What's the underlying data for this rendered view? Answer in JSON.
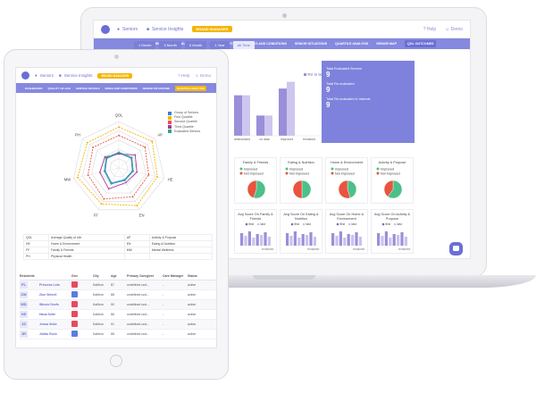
{
  "header": {
    "nav_seniors": "Seniors",
    "nav_insights": "Service Insights",
    "badge": "BRAND MANAGER",
    "help": "Help",
    "user": "Demo"
  },
  "nav_tabs": [
    "DASHBOARD",
    "QUALITY OF LIFE",
    "SERVICE DETAILS",
    "RISKS AND CONDITIONS",
    "SENIOR SITUATIONS",
    "QUARTILE ANALYSIS",
    "SENIOR MAP",
    "QOL OUTCOMES"
  ],
  "tablet_nav_tabs": [
    "DASHBOARD",
    "QUALITY OF LIFE",
    "SERVICE DETAILS",
    "RISKS AND CONDITIONS",
    "SENIOR SITUATIONS",
    "QUARTILE ANALYSIS"
  ],
  "time_ranges": [
    "1 Month",
    "3 Month",
    "6 Month",
    "1 Year",
    "All Time"
  ],
  "stats": {
    "total_label": "Total Evaluated Seniors",
    "total_value": "9",
    "reeval_label": "Total Re-evaluated",
    "reeval_value": "9",
    "internal_label": "Total Re-evaluated in Internal",
    "internal_value": "9"
  },
  "chart_data": [
    {
      "type": "bar",
      "categories": [
        "deteriorated",
        "no data",
        "improved",
        "remained"
      ],
      "series": [
        {
          "name": "first",
          "values": [
            6,
            3,
            7,
            0
          ]
        },
        {
          "name": "last",
          "values": [
            6,
            3,
            8,
            0
          ]
        }
      ],
      "ylim": [
        0,
        9
      ]
    },
    {
      "type": "pie",
      "title": "Family & Friends",
      "labels": [
        "Improved",
        "Not Improved"
      ],
      "values": [
        55,
        45
      ]
    },
    {
      "type": "pie",
      "title": "Eating & Nutrition",
      "labels": [
        "Improved",
        "Not Improved"
      ],
      "values": [
        50,
        50
      ]
    },
    {
      "type": "pie",
      "title": "Home & Environment",
      "labels": [
        "Improved",
        "Not Improved"
      ],
      "values": [
        45,
        55
      ]
    },
    {
      "type": "pie",
      "title": "Activity & Purpose",
      "labels": [
        "Improved",
        "Not Improved"
      ],
      "values": [
        60,
        40
      ]
    }
  ],
  "avg_cards": [
    {
      "title": "Avg Score On Family & Friends",
      "first": "first",
      "last": "last",
      "caption": "remained"
    },
    {
      "title": "Avg Score On Eating & Nutrition",
      "first": "first",
      "last": "last",
      "caption": "remained"
    },
    {
      "title": "Avg Score On Home & Environment",
      "first": "first",
      "last": "last",
      "caption": "remained"
    },
    {
      "title": "Avg Score On Activity & Purpose",
      "first": "first",
      "last": "last",
      "caption": "remained"
    }
  ],
  "radar": {
    "axes": [
      "QOL",
      "AP",
      "HE",
      "EN",
      "FF",
      "MW",
      "PH"
    ],
    "legend": [
      "Group of Seniors",
      "First Quartile",
      "Second Quartile",
      "Third Quartile",
      "Evaluated Seniors"
    ],
    "colors": [
      "#3b7dd8",
      "#f5b400",
      "#e8543f",
      "#b0359a",
      "#2ca88a"
    ]
  },
  "abbreviations": [
    [
      "QOL",
      "Average Quality of Life",
      "AP",
      "Activity & Purpose"
    ],
    [
      "HE",
      "Home & Environment",
      "EN",
      "Eating & Nutrition"
    ],
    [
      "FF",
      "Family & Friends",
      "MW",
      "Mental Wellness"
    ],
    [
      "PH",
      "Physical Health",
      "",
      ""
    ]
  ],
  "residents": {
    "headers": [
      "Residents",
      "Gen",
      "City",
      "Age",
      "Primary Caregiver",
      "Care Manager",
      "Status"
    ],
    "rows": [
      {
        "initials": "PL",
        "name": "Princess Leia",
        "gender": "F",
        "city": "Kaliforn",
        "age": "87",
        "caregiver": "undefined und...",
        "manager": "-",
        "status": "active"
      },
      {
        "initials": "ZW",
        "name": "Zion Wexell",
        "gender": "M",
        "city": "Kaliforn",
        "age": "88",
        "caregiver": "undefined und...",
        "manager": "-",
        "status": "active"
      },
      {
        "initials": "WD",
        "name": "Winnie Deefs",
        "gender": "F",
        "city": "Kaliforn",
        "age": "90",
        "caregiver": "undefined und...",
        "manager": "-",
        "status": "active"
      },
      {
        "initials": "HS",
        "name": "Hana Snite",
        "gender": "F",
        "city": "Kaliforn",
        "age": "86",
        "caregiver": "undefined und...",
        "manager": "-",
        "status": "active"
      },
      {
        "initials": "JS",
        "name": "Jenna Snite",
        "gender": "F",
        "city": "Kaliforn",
        "age": "91",
        "caregiver": "undefined und...",
        "manager": "-",
        "status": "active"
      },
      {
        "initials": "JR",
        "name": "Jolitia Rock",
        "gender": "M",
        "city": "Kaliforn",
        "age": "88",
        "caregiver": "undefined und...",
        "manager": "-",
        "status": "active"
      }
    ]
  }
}
